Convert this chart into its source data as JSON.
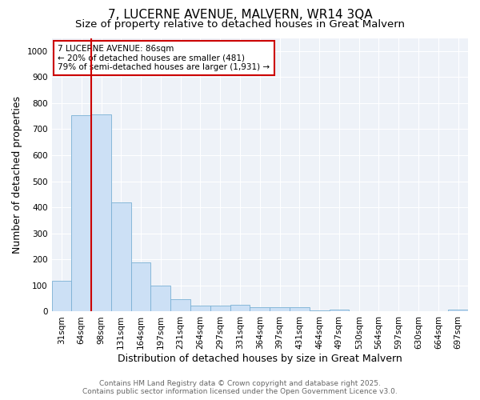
{
  "title": "7, LUCERNE AVENUE, MALVERN, WR14 3QA",
  "subtitle": "Size of property relative to detached houses in Great Malvern",
  "xlabel": "Distribution of detached houses by size in Great Malvern",
  "ylabel": "Number of detached properties",
  "categories": [
    "31sqm",
    "64sqm",
    "98sqm",
    "131sqm",
    "164sqm",
    "197sqm",
    "231sqm",
    "264sqm",
    "297sqm",
    "331sqm",
    "364sqm",
    "397sqm",
    "431sqm",
    "464sqm",
    "497sqm",
    "530sqm",
    "564sqm",
    "597sqm",
    "630sqm",
    "664sqm",
    "697sqm"
  ],
  "values": [
    118,
    755,
    758,
    420,
    188,
    100,
    48,
    22,
    22,
    27,
    18,
    17,
    18,
    5,
    7,
    0,
    0,
    0,
    0,
    0,
    8
  ],
  "bar_color": "#cce0f5",
  "bar_edge_color": "#7ab0d4",
  "ylim": [
    0,
    1050
  ],
  "yticks": [
    0,
    100,
    200,
    300,
    400,
    500,
    600,
    700,
    800,
    900,
    1000
  ],
  "property_label": "7 LUCERNE AVENUE: 86sqm",
  "annotation_line1": "← 20% of detached houses are smaller (481)",
  "annotation_line2": "79% of semi-detached houses are larger (1,931) →",
  "vline_color": "#cc0000",
  "footer_line1": "Contains HM Land Registry data © Crown copyright and database right 2025.",
  "footer_line2": "Contains public sector information licensed under the Open Government Licence v3.0.",
  "background_color": "#ffffff",
  "plot_bg_color": "#eef2f8",
  "grid_color": "#ffffff",
  "title_fontsize": 11,
  "subtitle_fontsize": 9.5,
  "tick_fontsize": 7.5,
  "label_fontsize": 9,
  "footer_fontsize": 6.5
}
